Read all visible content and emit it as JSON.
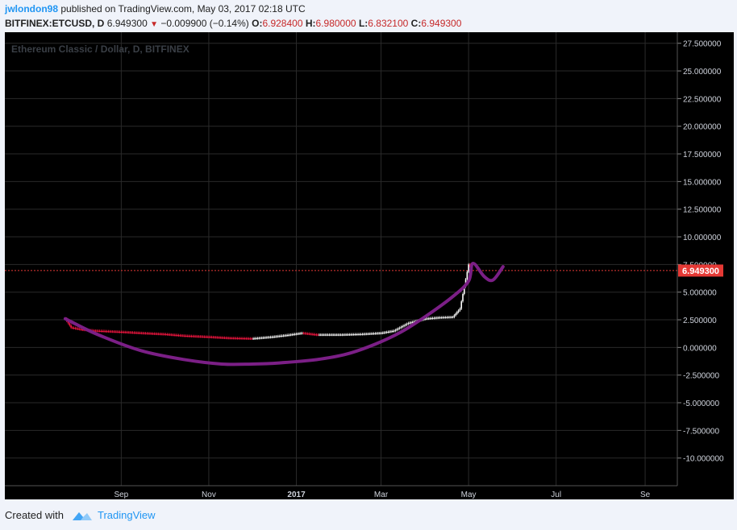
{
  "header": {
    "username": "jwlondon98",
    "published_text": "published on TradingView.com, May 03, 2017 02:18 UTC",
    "symbol": "BITFINEX:ETCUSD, D",
    "last": "6.949300",
    "change": "−0.009900 (−0.14%)",
    "o_label": "O:",
    "o_value": "6.928400",
    "h_label": "H:",
    "h_value": "6.980000",
    "l_label": "L:",
    "l_value": "6.832100",
    "c_label": "C:",
    "c_value": "6.949300"
  },
  "watermark": "Ethereum Classic / Dollar, D, BITFINEX",
  "price_tag": "6.949300",
  "footer": {
    "created_with": "Created with",
    "brand": "TradingView"
  },
  "colors": {
    "background": "#000000",
    "grid": "#2a2a2a",
    "up_candle": "#ffffff",
    "down_candle": "#ff1744",
    "drawing": "#7b1f86",
    "price_line": "#e53935",
    "brand": "#2196f3"
  },
  "chart_data": {
    "type": "line",
    "title": "Ethereum Classic / Dollar, D, BITFINEX",
    "ylim": [
      -12.5,
      28.5
    ],
    "y_ticks": [
      "27.500000",
      "25.000000",
      "22.500000",
      "20.000000",
      "17.500000",
      "15.000000",
      "12.500000",
      "10.000000",
      "7.500000",
      "5.000000",
      "2.500000",
      "0.000000",
      "-2.500000",
      "-5.000000",
      "-7.500000",
      "-10.000000"
    ],
    "x_ticks": [
      "Sep",
      "Nov",
      "2017",
      "Mar",
      "May",
      "Jul",
      "Se"
    ],
    "last_price": 6.9493,
    "series": [
      {
        "x": [
          "2016-07-24",
          "2016-07-28",
          "2016-08-05",
          "2016-08-15",
          "2016-09-01",
          "2016-09-15",
          "2016-10-01",
          "2016-10-15",
          "2016-11-01",
          "2016-11-15",
          "2016-12-01",
          "2016-12-15",
          "2016-12-25",
          "2017-01-05",
          "2017-01-15",
          "2017-02-01",
          "2017-02-15",
          "2017-03-01",
          "2017-03-10",
          "2017-03-20",
          "2017-04-01",
          "2017-04-10",
          "2017-04-20",
          "2017-04-25",
          "2017-04-28",
          "2017-05-01",
          "2017-05-03"
        ],
        "values": [
          2.6,
          1.8,
          1.6,
          1.5,
          1.4,
          1.3,
          1.2,
          1.05,
          0.95,
          0.85,
          0.8,
          0.95,
          1.1,
          1.3,
          1.15,
          1.15,
          1.2,
          1.3,
          1.5,
          2.2,
          2.6,
          2.7,
          2.75,
          3.5,
          5.5,
          7.5,
          6.95
        ]
      },
      {
        "x": [
          "2016-07-24",
          "2016-08-15",
          "2016-09-15",
          "2016-10-15",
          "2016-11-10",
          "2016-12-01",
          "2016-12-20",
          "2017-01-15",
          "2017-02-05",
          "2017-02-25",
          "2017-03-15",
          "2017-04-01",
          "2017-04-20",
          "2017-05-01",
          "2017-05-04",
          "2017-05-12",
          "2017-05-18",
          "2017-05-25"
        ],
        "values": [
          2.6,
          1.2,
          -0.3,
          -1.1,
          -1.5,
          -1.5,
          -1.4,
          -1.1,
          -0.6,
          0.3,
          1.4,
          2.8,
          4.6,
          6.0,
          7.6,
          6.4,
          6.1,
          7.3
        ]
      }
    ]
  }
}
